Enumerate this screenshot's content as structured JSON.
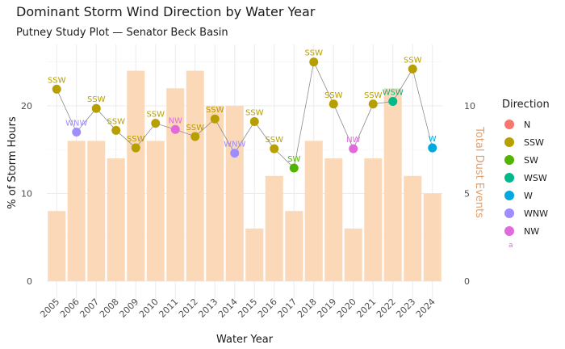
{
  "chart_data": {
    "type": "bar+line",
    "title": "Dominant Storm Wind Direction by Water Year",
    "subtitle": "Putney Study Plot — Senator Beck Basin",
    "xlabel": "Water Year",
    "ylabel": "% of Storm Hours",
    "y2label": "Total Dust Events",
    "categories": [
      "2005",
      "2006",
      "2007",
      "2008",
      "2009",
      "2010",
      "2011",
      "2012",
      "2013",
      "2014",
      "2015",
      "2016",
      "2017",
      "2018",
      "2019",
      "2020",
      "2021",
      "2022",
      "2023",
      "2024"
    ],
    "ylim": [
      0,
      27
    ],
    "yticks": [
      0,
      10,
      20
    ],
    "y2lim": [
      0,
      13.5
    ],
    "y2ticks": [
      0,
      5,
      10
    ],
    "dust_events": [
      4,
      8,
      8,
      7,
      12,
      8,
      11,
      12,
      10,
      10,
      3,
      6,
      4,
      8,
      7,
      3,
      7,
      11,
      6,
      5
    ],
    "storm_pct": [
      21.9,
      17.0,
      19.7,
      17.2,
      15.2,
      18.0,
      17.3,
      16.5,
      18.5,
      14.6,
      18.2,
      15.1,
      12.9,
      25.0,
      20.2,
      15.1,
      20.2,
      20.5,
      24.2,
      15.2
    ],
    "directions": [
      "SSW",
      "WNW",
      "SSW",
      "SSW",
      "SSW",
      "SSW",
      "NW",
      "SSW",
      "SSW",
      "WNW",
      "SSW",
      "SSW",
      "SW",
      "SSW",
      "SSW",
      "NW",
      "SSW",
      "WSW",
      "SSW",
      "W"
    ],
    "legend_title": "Direction",
    "legend": [
      {
        "name": "N",
        "color": "#F8766D"
      },
      {
        "name": "SSW",
        "color": "#B79F00"
      },
      {
        "name": "SW",
        "color": "#53B400"
      },
      {
        "name": "WSW",
        "color": "#00B88A"
      },
      {
        "name": "W",
        "color": "#00A9E0"
      },
      {
        "name": "WNW",
        "color": "#9F8CFF"
      },
      {
        "name": "NW",
        "color": "#E06ADC"
      }
    ],
    "legend_note": "a",
    "bar_color": "#FBD9B8",
    "y2_color": "#E0A06E"
  }
}
